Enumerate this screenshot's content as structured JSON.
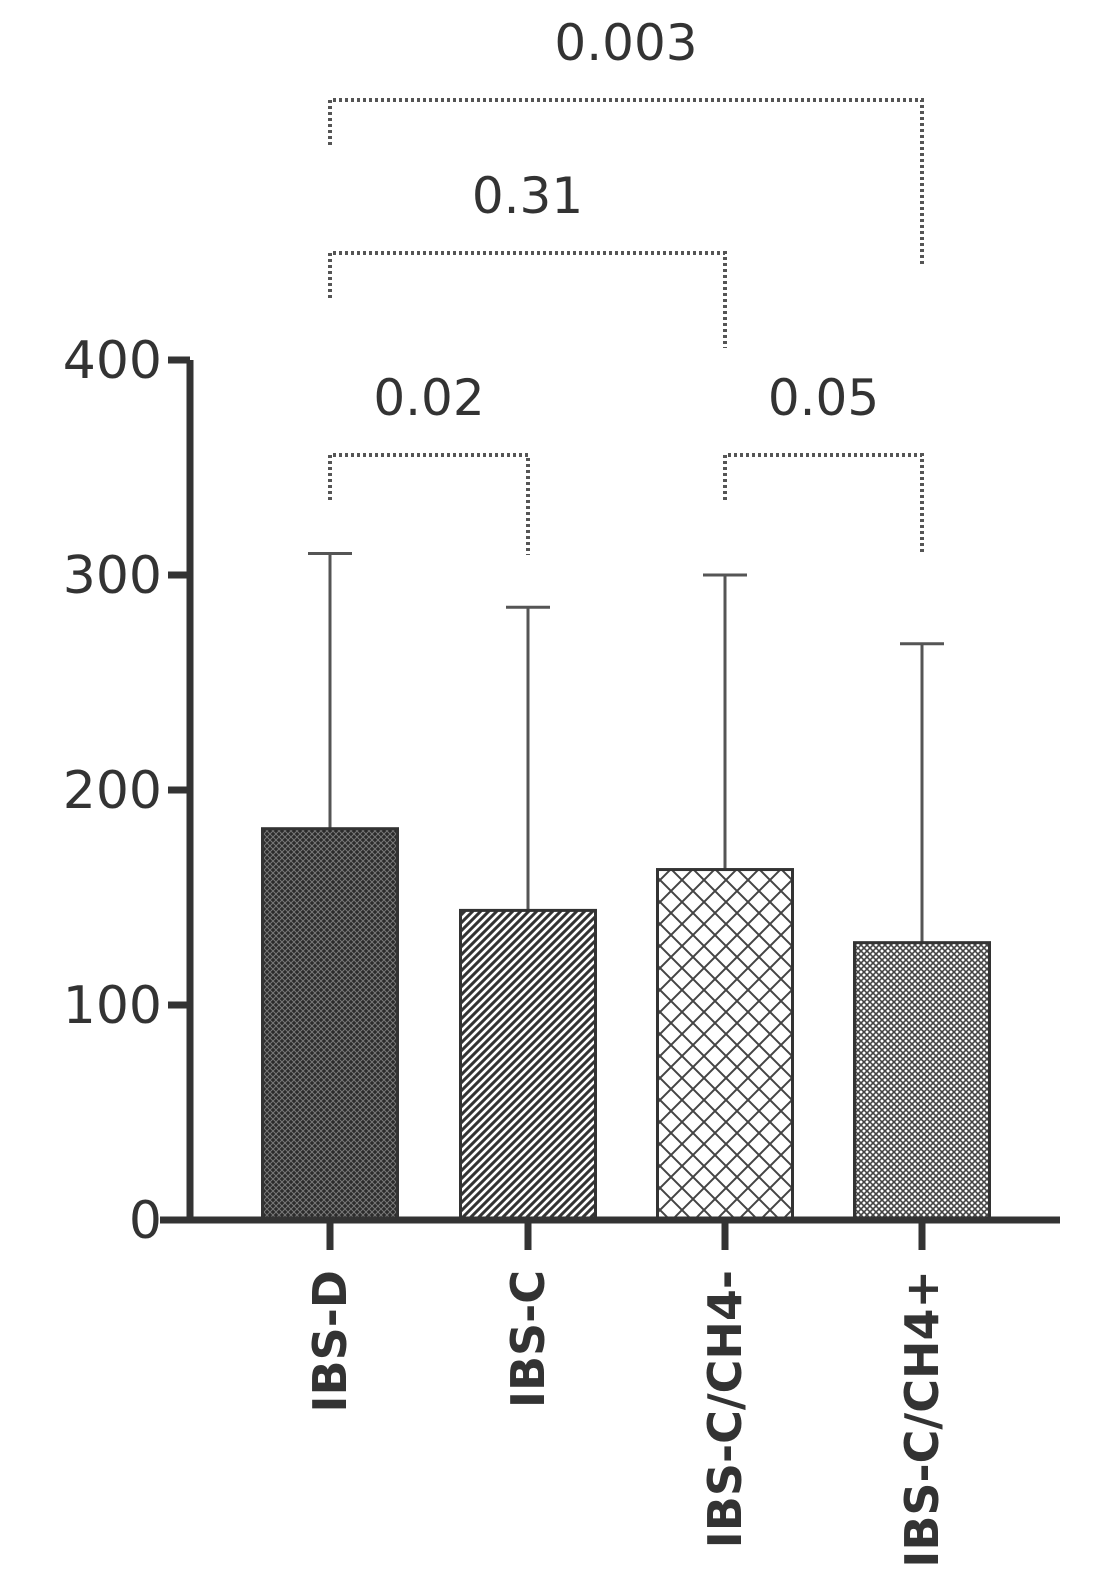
{
  "chart_data": {
    "type": "bar",
    "categories": [
      "IBS-D",
      "IBS-C",
      "IBS-C/CH4-",
      "IBS-C/CH4+"
    ],
    "values": [
      182,
      144,
      163,
      129
    ],
    "error_upper": [
      310,
      285,
      300,
      268
    ],
    "ylim": [
      0,
      400
    ],
    "yticks": [
      0,
      100,
      200,
      300,
      400
    ],
    "grid": false,
    "comparisons": [
      {
        "from": 0,
        "to": 1,
        "label": "0.02",
        "level": 0
      },
      {
        "from": 2,
        "to": 3,
        "label": "0.05",
        "level": 0
      },
      {
        "from": 0,
        "to": 2,
        "label": "0.31",
        "level": 1
      },
      {
        "from": 0,
        "to": 3,
        "label": "0.003",
        "level": 2
      }
    ],
    "bar_patterns": [
      "dense-crosshatch",
      "diagonal-stripes",
      "open-diamond-crosshatch",
      "fine-crosshatch"
    ],
    "colors": {
      "ink": "#333333",
      "bar_dark": "#2b2b2b",
      "bar_mid": "#555555",
      "background": "#ffffff"
    }
  }
}
